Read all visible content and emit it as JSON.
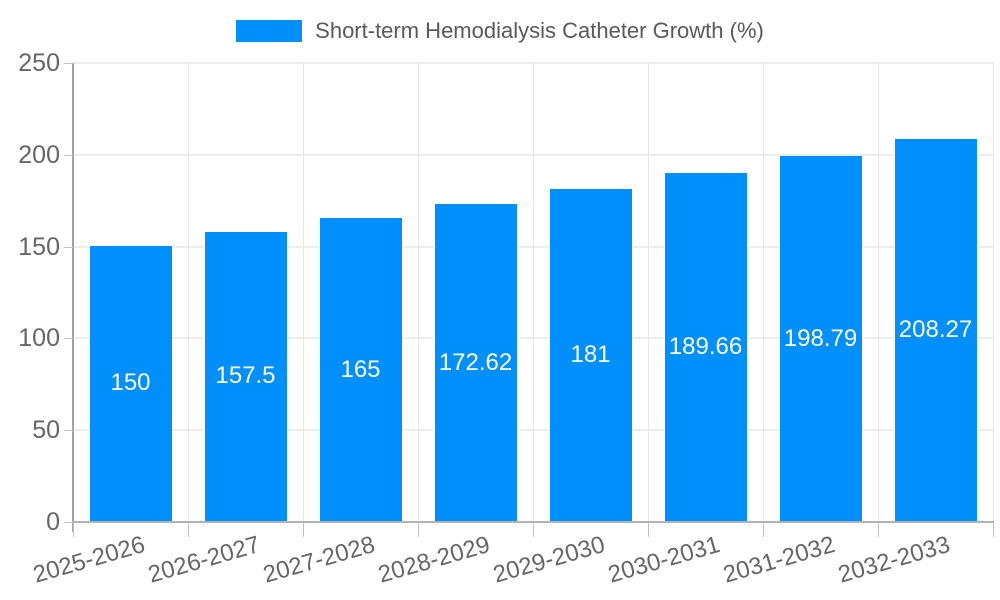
{
  "chart_data": {
    "type": "bar",
    "title": "",
    "legend": {
      "label": "Short-term Hemodialysis Catheter Growth (%)",
      "position": "top",
      "swatch_color": "#008FFB"
    },
    "categories": [
      "2025-2026",
      "2026-2027",
      "2027-2028",
      "2028-2029",
      "2029-2030",
      "2030-2031",
      "2031-2032",
      "2032-2033"
    ],
    "series": [
      {
        "name": "Short-term Hemodialysis Catheter Growth (%)",
        "values": [
          150,
          157.5,
          165,
          172.62,
          181,
          189.66,
          198.79,
          208.27
        ]
      }
    ],
    "value_labels": [
      "150",
      "157.5",
      "165",
      "172.62",
      "181",
      "189.66",
      "198.79",
      "208.27"
    ],
    "xlabel": "",
    "ylabel": "",
    "ylim": [
      0,
      250
    ],
    "yticks": [
      0,
      50,
      100,
      150,
      200,
      250
    ],
    "grid": true,
    "colors": {
      "bar": "#008FFB",
      "bar_label_text": "#ffffff",
      "axis_text": "#666666",
      "legend_text": "#595959",
      "grid_line": "#e7e7e7",
      "axis_line": "#a3a3a3"
    }
  }
}
